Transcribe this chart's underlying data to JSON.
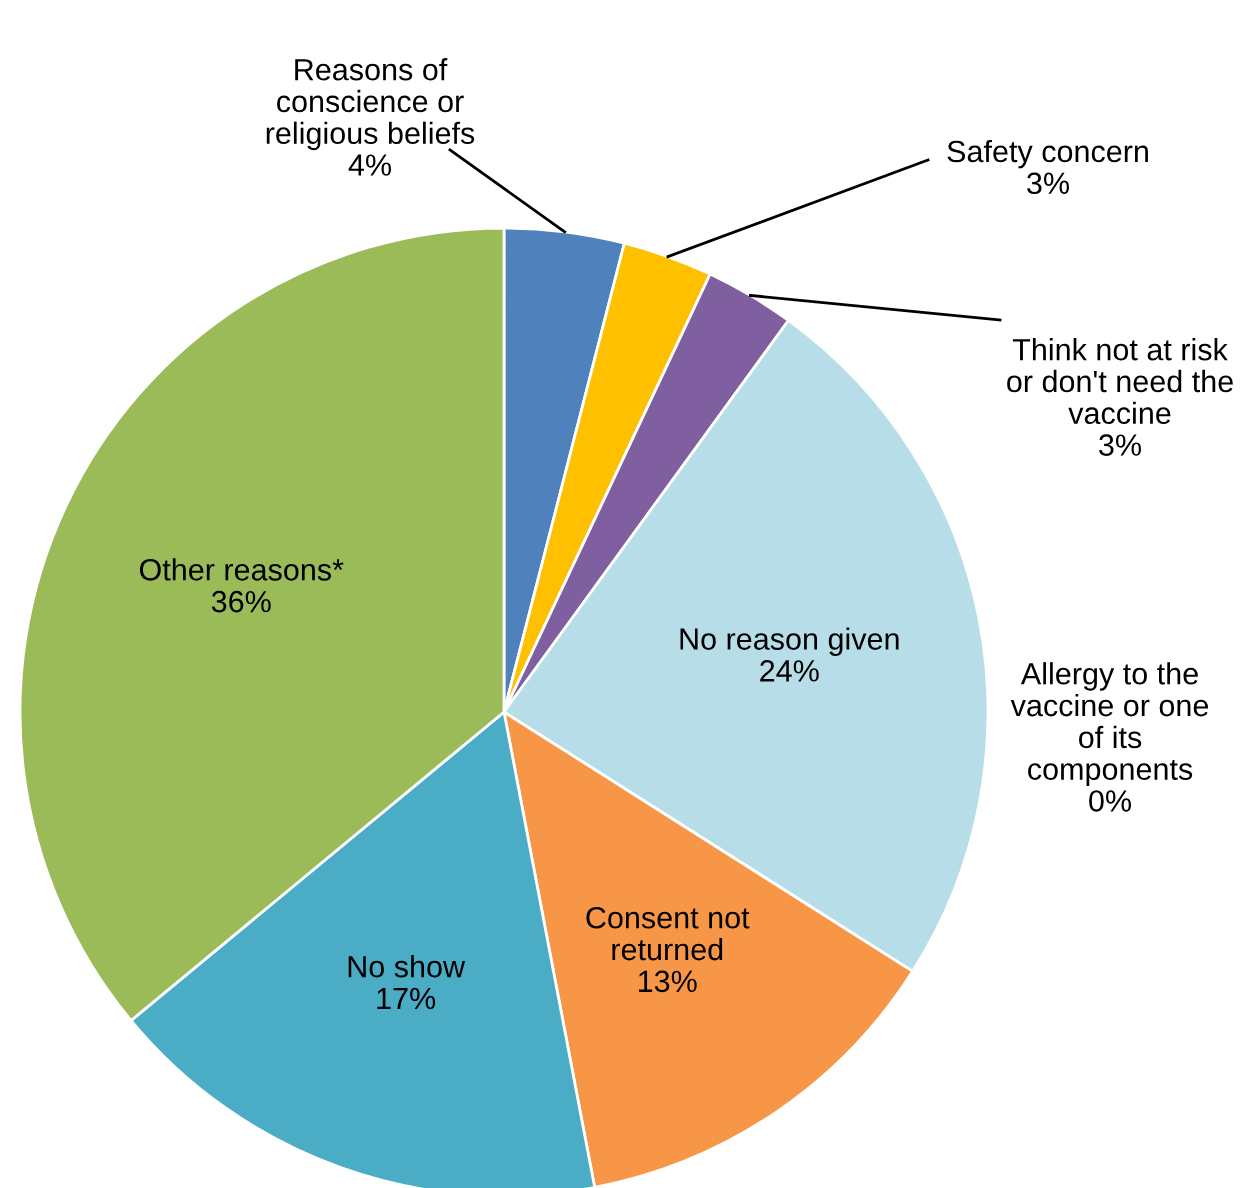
{
  "chart_data": {
    "type": "pie",
    "categories": [
      "Reasons of conscience or religious beliefs",
      "Safety concern",
      "Think not at risk or don't need the vaccine",
      "Allergy to the vaccine or one of its components",
      "No reason given",
      "Consent not returned",
      "No show",
      "Other reasons*"
    ],
    "values": [
      4,
      3,
      3,
      0,
      24,
      13,
      17,
      36
    ],
    "colors": [
      "#4f81bd",
      "#ffc000",
      "#7f5f9f",
      "#c0504d",
      "#b7dee8",
      "#f79646",
      "#4bacc6",
      "#9bbb59"
    ],
    "value_labels": [
      "4%",
      "3%",
      "3%",
      "0%",
      "24%",
      "13%",
      "17%",
      "36%"
    ]
  }
}
